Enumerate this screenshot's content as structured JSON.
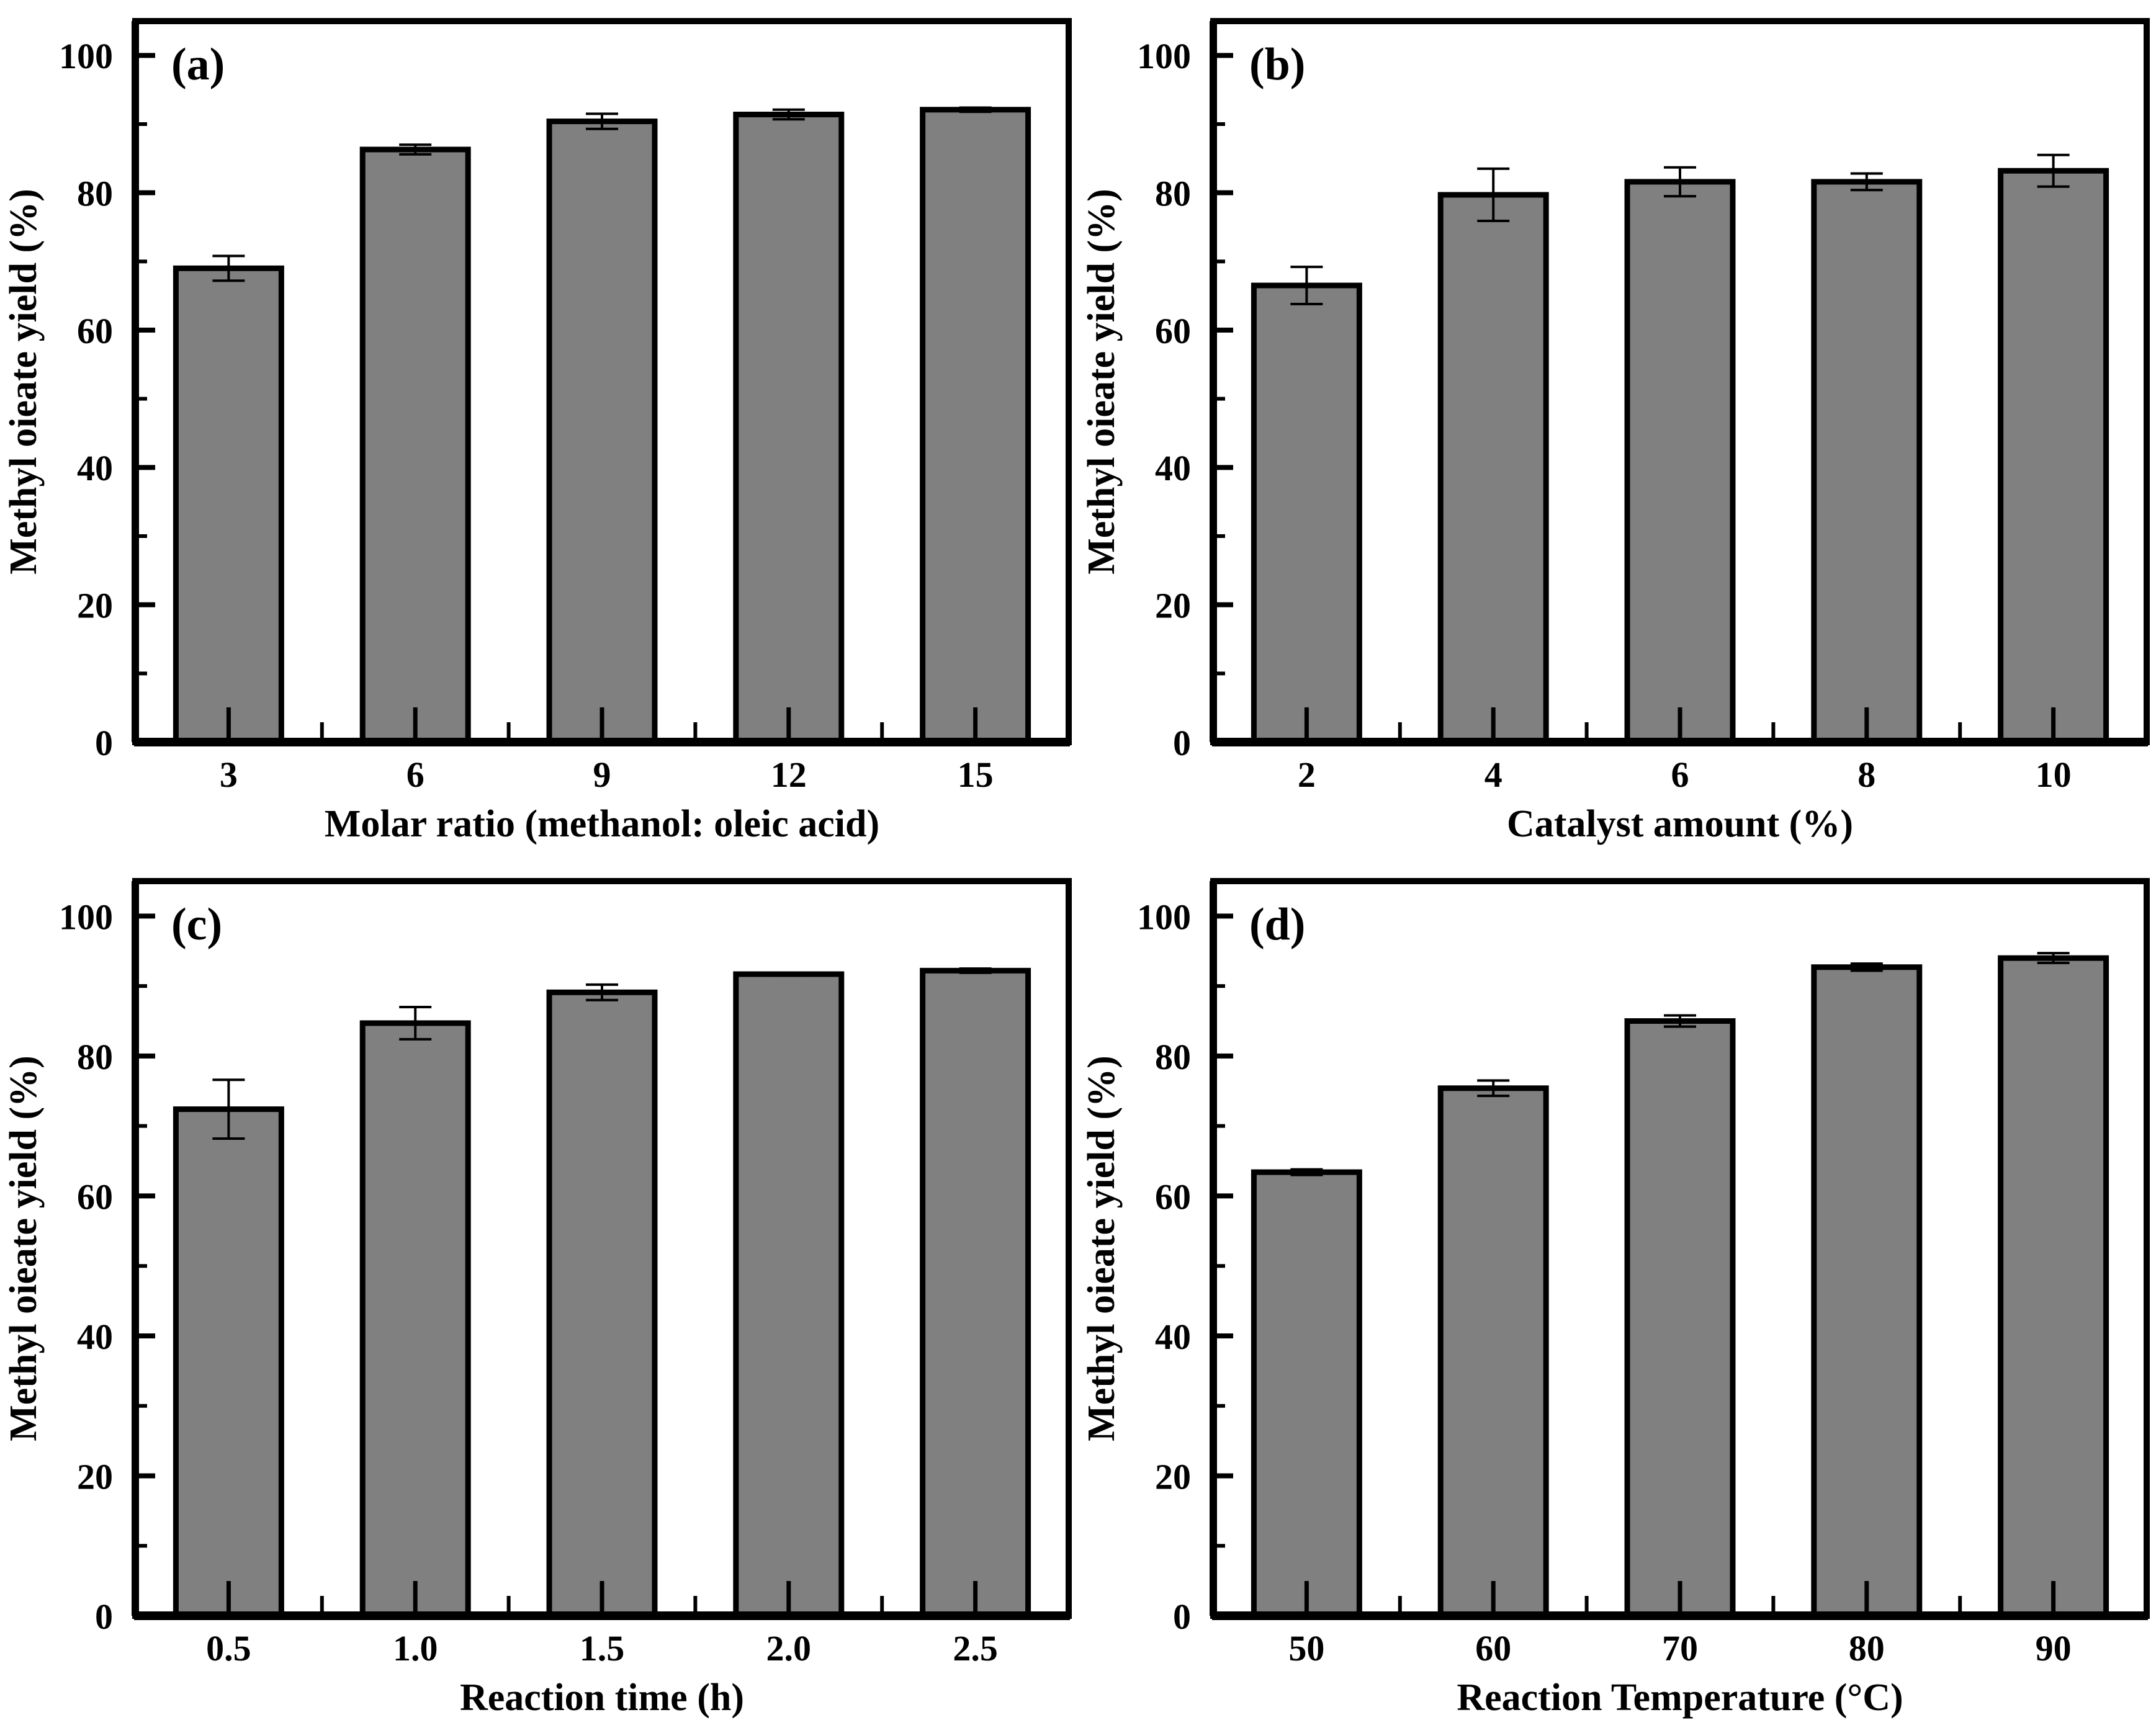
{
  "figure": {
    "background": "#ffffff",
    "bar_fill": "#808080",
    "bar_edge": "#000000",
    "axis_color": "#000000"
  },
  "chart_data": [
    {
      "type": "bar",
      "panel_label": "(a)",
      "categories": [
        "3",
        "6",
        "9",
        "12",
        "15"
      ],
      "values": [
        69.0,
        86.3,
        90.4,
        91.4,
        92.1
      ],
      "errors": [
        1.8,
        0.7,
        1.1,
        0.7,
        0.3
      ],
      "xlabel": "Molar ratio (methanol: oleic acid)",
      "ylabel": "Methyl oieate yield (%)",
      "yticks": [
        0,
        20,
        40,
        60,
        80,
        100
      ],
      "ylim": [
        0,
        105
      ],
      "grid": false,
      "legend": "none",
      "bar_color": "#808080"
    },
    {
      "type": "bar",
      "panel_label": "(b)",
      "categories": [
        "2",
        "4",
        "6",
        "8",
        "10"
      ],
      "values": [
        66.5,
        79.7,
        81.6,
        81.6,
        83.2
      ],
      "errors": [
        2.7,
        3.8,
        2.1,
        1.2,
        2.3
      ],
      "xlabel": "Catalyst amount (%)",
      "ylabel": "Methyl oieate yield (%)",
      "yticks": [
        0,
        20,
        40,
        60,
        80,
        100
      ],
      "ylim": [
        0,
        105
      ],
      "grid": false,
      "legend": "none",
      "bar_color": "#808080"
    },
    {
      "type": "bar",
      "panel_label": "(c)",
      "categories": [
        "0.5",
        "1.0",
        "1.5",
        "2.0",
        "2.5"
      ],
      "values": [
        72.4,
        84.7,
        89.1,
        91.7,
        92.2
      ],
      "errors": [
        4.2,
        2.3,
        1.1,
        0.2,
        0.3
      ],
      "xlabel": "Reaction time (h)",
      "ylabel": "Methyl oieate yield (%)",
      "yticks": [
        0,
        20,
        40,
        60,
        80,
        100
      ],
      "ylim": [
        0,
        105
      ],
      "grid": false,
      "legend": "none",
      "bar_color": "#808080"
    },
    {
      "type": "bar",
      "panel_label": "(d)",
      "categories": [
        "50",
        "60",
        "70",
        "80",
        "90"
      ],
      "values": [
        63.4,
        75.4,
        85.0,
        92.7,
        94.0
      ],
      "errors": [
        0.4,
        1.1,
        0.8,
        0.5,
        0.7
      ],
      "xlabel": "Reaction Temperature (°C)",
      "ylabel": "Methyl oieate yield (%)",
      "yticks": [
        0,
        20,
        40,
        60,
        80,
        100
      ],
      "ylim": [
        0,
        105
      ],
      "grid": false,
      "legend": "none",
      "bar_color": "#808080"
    }
  ]
}
